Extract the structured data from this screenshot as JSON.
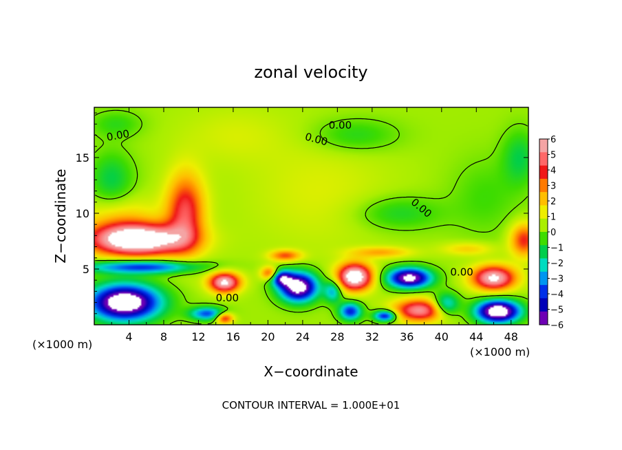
{
  "chart_data": {
    "type": "heatmap",
    "title": "zonal velocity",
    "xlabel": "X−coordinate",
    "ylabel": "Z−coordinate",
    "x_unit_left": "(×1000 m)",
    "x_unit_right": "(×1000 m)",
    "footer": "CONTOUR INTERVAL = 1.000E+01",
    "xlim": [
      0,
      50
    ],
    "ylim": [
      0,
      19.5
    ],
    "x_ticks": [
      4,
      8,
      12,
      16,
      20,
      24,
      28,
      32,
      36,
      40,
      44,
      48
    ],
    "y_ticks": [
      5,
      10,
      15
    ],
    "colorbar": {
      "range": [
        -6,
        6
      ],
      "tick_labels": [
        "6",
        "5",
        "4",
        "3",
        "2",
        "1",
        "0",
        "−1",
        "−2",
        "−3",
        "−4",
        "−5",
        "−6"
      ],
      "colors": [
        "#f4a4a4",
        "#ff6868",
        "#f01818",
        "#ff7a00",
        "#ffbe00",
        "#eeee00",
        "#aaee00",
        "#3edc00",
        "#00ce4c",
        "#00dcc0",
        "#0096f0",
        "#0030e8",
        "#0000b8",
        "#6e00b4"
      ]
    },
    "contour_labels": [
      {
        "text": "0.00",
        "x": 1.5,
        "z": 16.5,
        "angle": -10
      },
      {
        "text": "0.00",
        "x": 24.2,
        "z": 16.6,
        "angle": 15
      },
      {
        "text": "0.00",
        "x": 27.0,
        "z": 17.6,
        "angle": 0
      },
      {
        "text": "0.00",
        "x": 36.4,
        "z": 10.9,
        "angle": 40
      },
      {
        "text": "0.00",
        "x": 41.0,
        "z": 4.4,
        "angle": 0
      },
      {
        "text": "0.00",
        "x": 14.0,
        "z": 2.1,
        "angle": 0
      }
    ],
    "features": [
      {
        "x": 5.0,
        "z": 7.6,
        "u": 7.5,
        "sx": 5.5,
        "sz": 1.4
      },
      {
        "x": 10.5,
        "z": 10.2,
        "u": 4.0,
        "sx": 2.2,
        "sz": 3.4
      },
      {
        "x": 3.0,
        "z": 9.5,
        "u": 1.5,
        "sx": 4.5,
        "sz": 2.0
      },
      {
        "x": 5.5,
        "z": 5.2,
        "u": -4.5,
        "sx": 6.5,
        "sz": 0.6
      },
      {
        "x": 3.5,
        "z": 2.0,
        "u": -8.0,
        "sx": 4.0,
        "sz": 1.6
      },
      {
        "x": 15.0,
        "z": 3.8,
        "u": 6.0,
        "sx": 1.8,
        "sz": 0.9
      },
      {
        "x": 20.2,
        "z": 4.6,
        "u": 3.5,
        "sx": 1.0,
        "sz": 0.6
      },
      {
        "x": 23.5,
        "z": 3.4,
        "u": -7.5,
        "sx": 2.2,
        "sz": 1.3
      },
      {
        "x": 21.5,
        "z": 4.2,
        "u": -4.5,
        "sx": 1.2,
        "sz": 0.7
      },
      {
        "x": 22.0,
        "z": 6.2,
        "u": 3.0,
        "sx": 1.8,
        "sz": 0.5
      },
      {
        "x": 30.0,
        "z": 4.3,
        "u": 7.0,
        "sx": 2.0,
        "sz": 1.2
      },
      {
        "x": 29.5,
        "z": 1.2,
        "u": -4.5,
        "sx": 1.3,
        "sz": 0.8
      },
      {
        "x": 27.5,
        "z": 3.0,
        "u": -3.0,
        "sx": 1.0,
        "sz": 1.0
      },
      {
        "x": 36.3,
        "z": 4.2,
        "u": -7.0,
        "sx": 2.5,
        "sz": 0.9
      },
      {
        "x": 37.5,
        "z": 1.3,
        "u": 5.0,
        "sx": 3.0,
        "sz": 1.0
      },
      {
        "x": 33.5,
        "z": 0.8,
        "u": -5.0,
        "sx": 1.3,
        "sz": 0.5
      },
      {
        "x": 40.5,
        "z": 1.8,
        "u": -3.5,
        "sx": 1.5,
        "sz": 1.0
      },
      {
        "x": 46.0,
        "z": 4.2,
        "u": 6.0,
        "sx": 2.5,
        "sz": 1.1
      },
      {
        "x": 46.5,
        "z": 1.2,
        "u": -8.0,
        "sx": 2.5,
        "sz": 1.0
      },
      {
        "x": 49.5,
        "z": 7.6,
        "u": 3.5,
        "sx": 1.6,
        "sz": 1.5
      },
      {
        "x": 43.0,
        "z": 6.8,
        "u": 1.5,
        "sx": 3.0,
        "sz": 0.6
      },
      {
        "x": 13.0,
        "z": 1.0,
        "u": -4.0,
        "sx": 2.0,
        "sz": 0.6
      },
      {
        "x": 15.0,
        "z": 0.6,
        "u": 4.0,
        "sx": 1.0,
        "sz": 0.5
      },
      {
        "x": 2.0,
        "z": 13.0,
        "u": -1.6,
        "sx": 2.5,
        "sz": 2.5
      },
      {
        "x": 49.0,
        "z": 15.0,
        "u": -1.5,
        "sx": 2.0,
        "sz": 2.5
      },
      {
        "x": 35.0,
        "z": 10.0,
        "u": -1.3,
        "sx": 5.0,
        "sz": 1.5
      },
      {
        "x": 30.0,
        "z": 17.0,
        "u": -1.2,
        "sx": 5.0,
        "sz": 1.5
      },
      {
        "x": 45.0,
        "z": 11.5,
        "u": -0.8,
        "sx": 4.0,
        "sz": 3.5
      },
      {
        "x": 2.5,
        "z": 18.0,
        "u": -1.0,
        "sx": 3.0,
        "sz": 1.2
      },
      {
        "x": 26.0,
        "z": 12.0,
        "u": 0.7,
        "sx": 8.0,
        "sz": 5.0
      },
      {
        "x": 16.0,
        "z": 17.0,
        "u": 0.6,
        "sx": 6.0,
        "sz": 2.5
      },
      {
        "x": 33.0,
        "z": 6.5,
        "u": 2.0,
        "sx": 3.5,
        "sz": 0.5
      }
    ]
  }
}
